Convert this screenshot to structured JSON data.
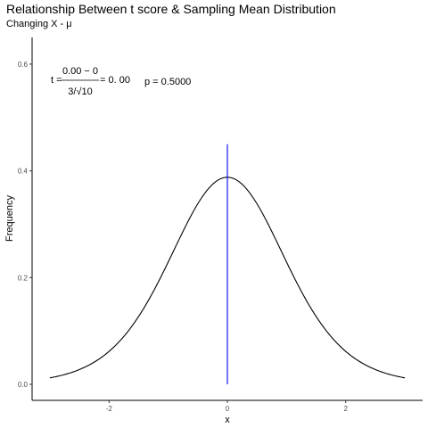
{
  "chart_data": {
    "type": "line",
    "title": "Relationship Between t score & Sampling Mean Distribution",
    "subtitle": "Changing X - μ",
    "xlabel": "x",
    "ylabel": "Frequency",
    "xlim": [
      -3.3,
      3.3
    ],
    "ylim": [
      -0.03,
      0.65
    ],
    "xticks": [
      -2,
      0,
      2
    ],
    "yticks": [
      0.0,
      0.2,
      0.4,
      0.6
    ],
    "ytick_labels": [
      "0.0",
      "0.2",
      "0.4",
      "0.6"
    ],
    "grid": false,
    "legend": "none",
    "series": [
      {
        "curve": "t density",
        "df": 9,
        "x_range": [
          -3,
          3
        ],
        "color": "#000000"
      }
    ],
    "vline": {
      "x": 0,
      "y_range": [
        0,
        0.45
      ],
      "color": "#0000ff"
    },
    "annotation": {
      "t_prefix": "t = ",
      "numerator": "0.00 − 0",
      "denominator": "3/√10",
      "equals": "= 0. 00",
      "p_text": "p = 0.5000"
    }
  }
}
